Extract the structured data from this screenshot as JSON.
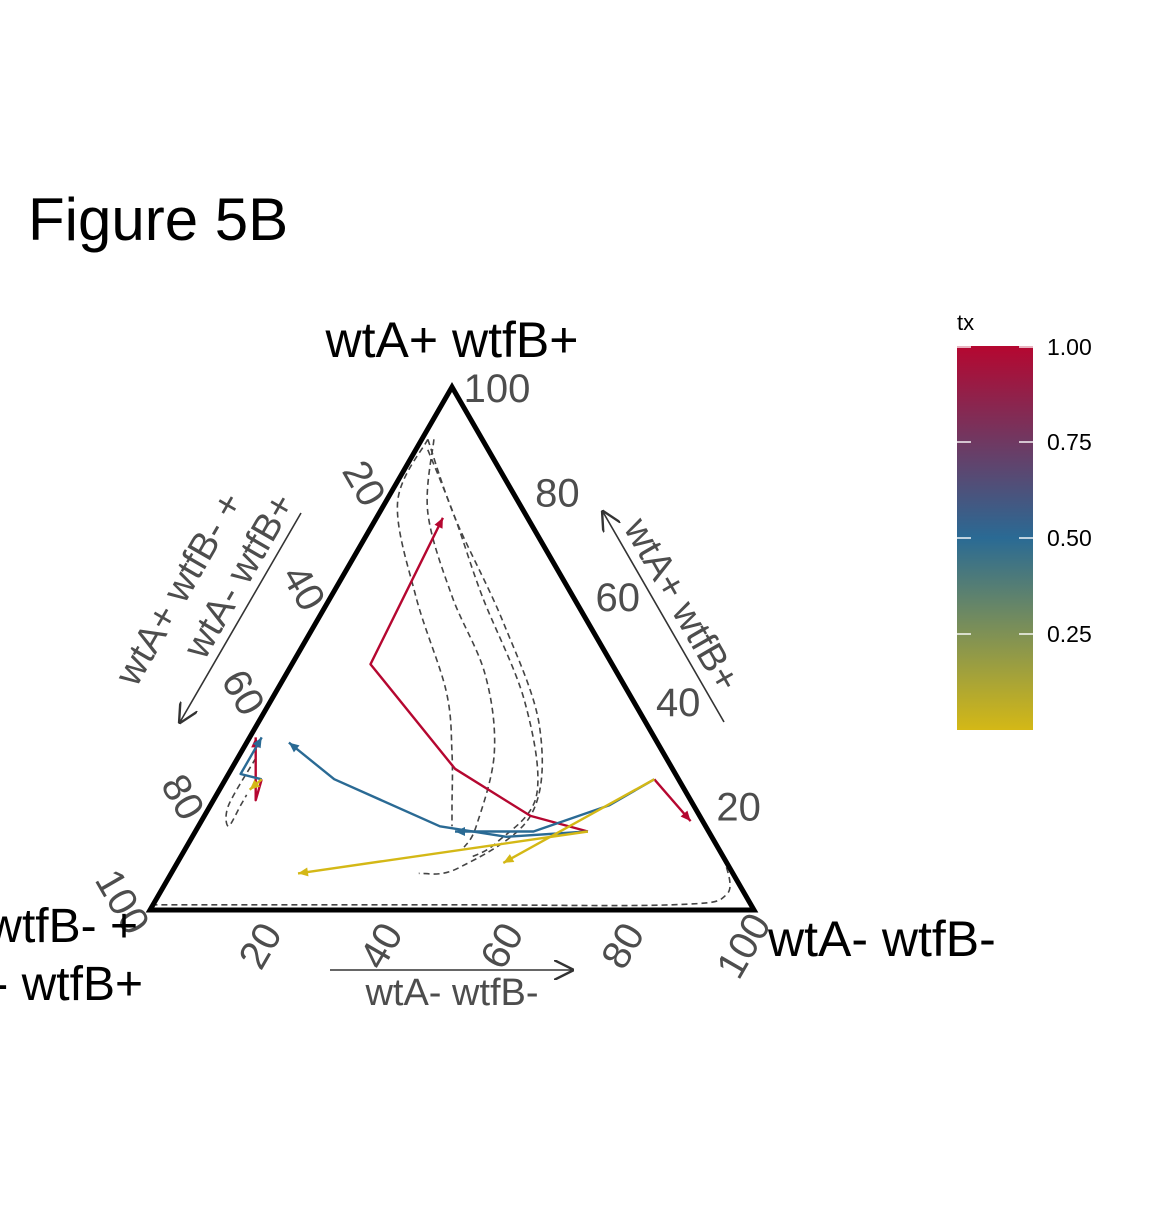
{
  "figure_title": "Figure 5B",
  "chart_data": {
    "type": "ternary",
    "title": "Figure 5B",
    "vertices": {
      "top": "wtA+ wtfB+",
      "bottom_left_line1": "wtA+ wtfB- +",
      "bottom_left_line2": "wtA- wtfB+",
      "bottom_right": "wtA- wtfB-"
    },
    "axes": {
      "top": {
        "label": "wtA+ wtfB+",
        "ticks": [
          20,
          40,
          60,
          80,
          100
        ]
      },
      "left": {
        "label_line1": "wtA+ wtfB- +",
        "label_line2": "wtA- wtfB+",
        "ticks": [
          20,
          40,
          60,
          80,
          100
        ]
      },
      "bottom": {
        "label": "wtA- wtfB-",
        "ticks": [
          20,
          40,
          60,
          80,
          100
        ]
      }
    },
    "legend": {
      "title": "tx",
      "type": "colorbar",
      "position": "right",
      "range": [
        0,
        1
      ],
      "ticks": [
        "0.25",
        "0.50",
        "0.75",
        "1.00"
      ],
      "colors": [
        "#d4b816",
        "#2a6a94",
        "#b50730"
      ]
    },
    "series_note": "coordinates are percentages [wtA+ wtfB+, wtA+ wtfB- + wtA- wtfB+, wtA- wtfB-]",
    "series": [
      {
        "group": "start_A",
        "tx": 1.0,
        "color": "#b50730",
        "points": [
          [
            15,
            20,
            65
          ],
          [
            18,
            28,
            54
          ],
          [
            27,
            36,
            37
          ],
          [
            47,
            40,
            13
          ],
          [
            75,
            14,
            11
          ]
        ]
      },
      {
        "group": "start_A",
        "tx": 0.5,
        "color": "#2a6a94",
        "points": [
          [
            15,
            20,
            65
          ],
          [
            14,
            34,
            52
          ],
          [
            16,
            44,
            40
          ],
          [
            25,
            57,
            18
          ],
          [
            32,
            61,
            7
          ]
        ]
      },
      {
        "group": "start_A",
        "tx": 0.0,
        "color": "#d4b816",
        "points": [
          [
            15,
            20,
            65
          ],
          [
            7,
            72,
            21
          ]
        ]
      },
      {
        "group": "start_B",
        "tx": 1.0,
        "color": "#b50730",
        "points": [
          [
            25,
            69,
            6
          ],
          [
            21,
            72,
            7
          ],
          [
            33,
            66,
            1
          ]
        ]
      },
      {
        "group": "start_B",
        "tx": 0.5,
        "color": "#2a6a94",
        "points": [
          [
            25,
            69,
            6
          ],
          [
            26,
            72,
            2
          ],
          [
            33,
            65,
            2
          ]
        ]
      },
      {
        "group": "start_B",
        "tx": 0.0,
        "color": "#d4b816",
        "points": [
          [
            25,
            69,
            6
          ],
          [
            23,
            72,
            5
          ]
        ]
      },
      {
        "group": "start_C",
        "tx": 1.0,
        "color": "#b50730",
        "points": [
          [
            25,
            4,
            71
          ],
          [
            17,
            2,
            81
          ]
        ]
      },
      {
        "group": "start_C",
        "tx": 0.5,
        "color": "#2a6a94",
        "points": [
          [
            25,
            4,
            71
          ],
          [
            20,
            14,
            66
          ],
          [
            15,
            29,
            56
          ],
          [
            15,
            38,
            47
          ],
          [
            15,
            42,
            43
          ]
        ]
      },
      {
        "group": "start_C",
        "tx": 0.0,
        "color": "#d4b816",
        "points": [
          [
            25,
            4,
            71
          ],
          [
            9,
            37,
            54
          ]
        ]
      }
    ],
    "trajectories": [
      {
        "style": "dashed",
        "color": "#444444",
        "points": [
          [
            90,
            9,
            1
          ],
          [
            78,
            20,
            2
          ],
          [
            60,
            26,
            14
          ],
          [
            42,
            30,
            28
          ],
          [
            30,
            35,
            35
          ],
          [
            20,
            40,
            40
          ],
          [
            16,
            42,
            42
          ]
        ]
      },
      {
        "style": "dashed",
        "color": "#444444",
        "points": [
          [
            90,
            8,
            2
          ],
          [
            76,
            16,
            8
          ],
          [
            60,
            20,
            20
          ],
          [
            45,
            22,
            33
          ],
          [
            30,
            28,
            42
          ],
          [
            16,
            38,
            46
          ],
          [
            12,
            42,
            46
          ]
        ]
      },
      {
        "style": "dashed",
        "color": "#444444",
        "points": [
          [
            88,
            10,
            2
          ],
          [
            75,
            12,
            13
          ],
          [
            60,
            15,
            25
          ],
          [
            40,
            18,
            42
          ],
          [
            22,
            25,
            53
          ],
          [
            13,
            36,
            51
          ],
          [
            10,
            42,
            48
          ]
        ]
      },
      {
        "style": "dashed",
        "color": "#444444",
        "points": [
          [
            90,
            9,
            1
          ],
          [
            75,
            12,
            13
          ],
          [
            55,
            14,
            31
          ],
          [
            35,
            18,
            47
          ],
          [
            18,
            28,
            54
          ],
          [
            8,
            45,
            47
          ],
          [
            7,
            52,
            41
          ]
        ]
      },
      {
        "style": "dashed",
        "color": "#444444",
        "points": [
          [
            29,
            68,
            3
          ],
          [
            20,
            77,
            3
          ],
          [
            16,
            79,
            5
          ],
          [
            20,
            75,
            5
          ],
          [
            22,
            73,
            5
          ]
        ]
      },
      {
        "style": "dashed",
        "color": "#444444",
        "points": [
          [
            10,
            0,
            90
          ],
          [
            3,
            3,
            94
          ],
          [
            1,
            13,
            86
          ],
          [
            1,
            50,
            49
          ],
          [
            1,
            99,
            0
          ]
        ]
      }
    ]
  }
}
